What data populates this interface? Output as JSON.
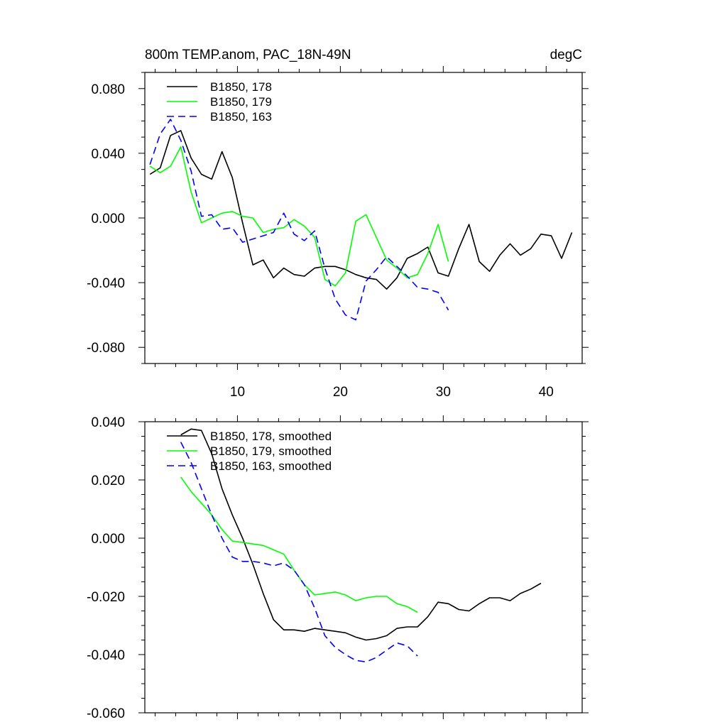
{
  "chart_data": [
    {
      "type": "line",
      "title": "800m TEMP.anom, PAC_18N-49N",
      "units": "degC",
      "xlabel": "",
      "ylabel": "",
      "xlim": [
        1,
        43.5
      ],
      "ylim": [
        -0.09,
        0.09
      ],
      "xticks": [
        10,
        20,
        30,
        40
      ],
      "xtick_labels": [
        "10",
        "20",
        "30",
        "40"
      ],
      "yticks": [
        -0.08,
        -0.04,
        0.0,
        0.04,
        0.08
      ],
      "ytick_labels": [
        "-0.080",
        "-0.040",
        "0.000",
        "0.040",
        "0.080"
      ],
      "grid": false,
      "legend_position": "top-left",
      "series": [
        {
          "name": "B1850, 178",
          "color": "#000000",
          "dash": "solid",
          "x": [
            1.5,
            2.5,
            3.5,
            4.5,
            5.5,
            6.5,
            7.5,
            8.5,
            9.5,
            10.5,
            11.5,
            12.5,
            13.5,
            14.5,
            15.5,
            16.5,
            17.5,
            18.5,
            19.5,
            20.5,
            21.5,
            22.5,
            23.5,
            24.5,
            25.5,
            26.5,
            27.5,
            28.5,
            29.5,
            30.5,
            31.5,
            32.5,
            33.5,
            34.5,
            35.5,
            36.5,
            37.5,
            38.5,
            39.5,
            40.5,
            41.5,
            42.5
          ],
          "y": [
            0.027,
            0.031,
            0.051,
            0.054,
            0.037,
            0.027,
            0.024,
            0.041,
            0.025,
            -0.003,
            -0.029,
            -0.026,
            -0.037,
            -0.031,
            -0.035,
            -0.036,
            -0.031,
            -0.03,
            -0.03,
            -0.032,
            -0.035,
            -0.037,
            -0.038,
            -0.044,
            -0.037,
            -0.025,
            -0.022,
            -0.018,
            -0.034,
            -0.036,
            -0.019,
            -0.004,
            -0.027,
            -0.033,
            -0.023,
            -0.016,
            -0.023,
            -0.019,
            -0.01,
            -0.011,
            -0.025,
            -0.009
          ]
        },
        {
          "name": "B1850, 179",
          "color": "#00ff00",
          "dash": "solid",
          "x": [
            1.5,
            2.5,
            3.5,
            4.5,
            5.5,
            6.5,
            7.5,
            8.5,
            9.5,
            10.5,
            11.5,
            12.5,
            13.5,
            14.5,
            15.5,
            16.5,
            17.5,
            18.5,
            19.5,
            20.5,
            21.5,
            22.5,
            23.5,
            24.5,
            25.5,
            26.5,
            27.5,
            28.5,
            29.5,
            30.5
          ],
          "y": [
            0.032,
            0.028,
            0.032,
            0.044,
            0.016,
            -0.003,
            0.0,
            0.003,
            0.004,
            0.001,
            0.0,
            -0.009,
            -0.007,
            -0.006,
            -0.001,
            -0.005,
            -0.012,
            -0.038,
            -0.042,
            -0.034,
            -0.002,
            0.002,
            -0.012,
            -0.026,
            -0.031,
            -0.037,
            -0.035,
            -0.022,
            -0.004,
            -0.027
          ]
        },
        {
          "name": "B1850, 163",
          "color": "#0000ff",
          "dash": "dashed",
          "x": [
            1.5,
            2.5,
            3.5,
            4.5,
            5.5,
            6.5,
            7.5,
            8.5,
            9.5,
            10.5,
            11.5,
            12.5,
            13.5,
            14.5,
            15.5,
            16.5,
            17.5,
            18.5,
            19.5,
            20.5,
            21.5,
            22.5,
            23.5,
            24.5,
            25.5,
            26.5,
            27.5,
            28.5,
            29.5,
            30.5
          ],
          "y": [
            0.033,
            0.052,
            0.061,
            0.048,
            0.029,
            0.001,
            0.002,
            -0.007,
            -0.006,
            -0.015,
            -0.013,
            -0.011,
            -0.009,
            0.003,
            -0.01,
            -0.014,
            -0.008,
            -0.031,
            -0.05,
            -0.06,
            -0.063,
            -0.039,
            -0.032,
            -0.024,
            -0.03,
            -0.036,
            -0.043,
            -0.044,
            -0.046,
            -0.057
          ]
        }
      ]
    },
    {
      "type": "line",
      "title": "",
      "xlabel": "",
      "ylabel": "",
      "xlim": [
        1,
        43.5
      ],
      "ylim": [
        -0.06,
        0.04
      ],
      "xticks": [
        10,
        20,
        30,
        40
      ],
      "xtick_labels": [],
      "yticks": [
        -0.06,
        -0.04,
        -0.02,
        0.0,
        0.02,
        0.04
      ],
      "ytick_labels": [
        "-0.060",
        "-0.040",
        "-0.020",
        "0.000",
        "0.020",
        "0.040"
      ],
      "grid": false,
      "legend_position": "top-left",
      "series": [
        {
          "name": "B1850, 178, smoothed",
          "color": "#000000",
          "dash": "solid",
          "x": [
            4.5,
            5.5,
            6.5,
            7.5,
            8.5,
            9.5,
            10.5,
            11.5,
            12.5,
            13.5,
            14.5,
            15.5,
            16.5,
            17.5,
            18.5,
            19.5,
            20.5,
            21.5,
            22.5,
            23.5,
            24.5,
            25.5,
            26.5,
            27.5,
            28.5,
            29.5,
            30.5,
            31.5,
            32.5,
            33.5,
            34.5,
            35.5,
            36.5,
            37.5,
            38.5,
            39.5
          ],
          "y": [
            0.0355,
            0.0375,
            0.037,
            0.029,
            0.017,
            0.008,
            0.0,
            -0.009,
            -0.019,
            -0.028,
            -0.0315,
            -0.0315,
            -0.032,
            -0.031,
            -0.0315,
            -0.032,
            -0.0325,
            -0.034,
            -0.035,
            -0.0345,
            -0.0335,
            -0.031,
            -0.0305,
            -0.0305,
            -0.027,
            -0.022,
            -0.0225,
            -0.0245,
            -0.025,
            -0.0225,
            -0.0205,
            -0.0205,
            -0.0215,
            -0.019,
            -0.0175,
            -0.0155
          ]
        },
        {
          "name": "B1850, 179, smoothed",
          "color": "#00ff00",
          "dash": "solid",
          "x": [
            4.5,
            5.5,
            6.5,
            7.5,
            8.5,
            9.5,
            10.5,
            11.5,
            12.5,
            13.5,
            14.5,
            15.5,
            16.5,
            17.5,
            18.5,
            19.5,
            20.5,
            21.5,
            22.5,
            23.5,
            24.5,
            25.5,
            26.5,
            27.5
          ],
          "y": [
            0.021,
            0.016,
            0.012,
            0.008,
            0.003,
            -0.001,
            -0.0015,
            -0.002,
            -0.0025,
            -0.004,
            -0.0055,
            -0.011,
            -0.016,
            -0.0195,
            -0.019,
            -0.0185,
            -0.0195,
            -0.0215,
            -0.0205,
            -0.02,
            -0.02,
            -0.0225,
            -0.0235,
            -0.0255
          ]
        },
        {
          "name": "B1850, 163, smoothed",
          "color": "#0000ff",
          "dash": "dashed",
          "x": [
            4.5,
            5.5,
            6.5,
            7.5,
            8.5,
            9.5,
            10.5,
            11.5,
            12.5,
            13.5,
            14.5,
            15.5,
            16.5,
            17.5,
            18.5,
            19.5,
            20.5,
            21.5,
            22.5,
            23.5,
            24.5,
            25.5,
            26.5,
            27.5
          ],
          "y": [
            0.033,
            0.026,
            0.017,
            0.008,
            0.0,
            -0.0065,
            -0.008,
            -0.008,
            -0.0085,
            -0.0095,
            -0.0085,
            -0.011,
            -0.016,
            -0.024,
            -0.0335,
            -0.0375,
            -0.04,
            -0.042,
            -0.0425,
            -0.041,
            -0.0385,
            -0.036,
            -0.037,
            -0.0405
          ]
        }
      ]
    }
  ]
}
